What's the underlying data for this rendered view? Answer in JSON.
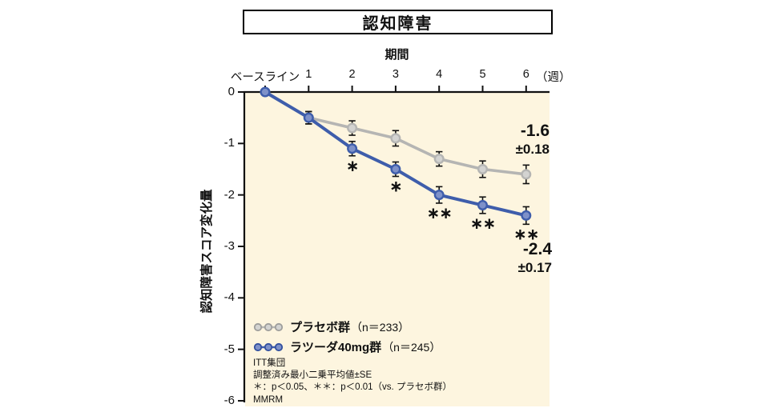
{
  "title": "認知障害",
  "axes": {
    "x_title": "期間",
    "x_tick_labels": [
      "ベースライン",
      "1",
      "2",
      "3",
      "4",
      "5",
      "6"
    ],
    "x_unit": "（週）",
    "y_label": "認知障害スコア変化量",
    "y_ticks": [
      "0",
      "-1",
      "-2",
      "-3",
      "-4",
      "-5",
      "-6"
    ]
  },
  "chart_data": {
    "type": "line",
    "title": "認知障害",
    "xlabel": "期間",
    "ylabel": "認知障害スコア変化量",
    "x_categories": [
      "ベースライン",
      "1",
      "2",
      "3",
      "4",
      "5",
      "6"
    ],
    "x_unit": "週",
    "ylim": [
      -6,
      0
    ],
    "grid": false,
    "legend_position": "inside-bottom-left",
    "series": [
      {
        "name": "プラセボ群",
        "n_label": "（n＝233）",
        "color": "#b5b5b3",
        "marker_fill": "#d3d3d1",
        "marker_edge": "#9e9e9c",
        "values": [
          0,
          -0.5,
          -0.7,
          -0.9,
          -1.3,
          -1.5,
          -1.6
        ],
        "se": [
          0,
          0.12,
          0.14,
          0.15,
          0.14,
          0.16,
          0.18
        ],
        "significance": [
          "",
          "",
          "",
          "",
          "",
          "",
          ""
        ],
        "final_value_label": "-1.6",
        "final_se_label": "±0.18"
      },
      {
        "name": "ラツーダ40mg群",
        "n_label": "（n＝245）",
        "color": "#3e5dab",
        "marker_fill": "#7e91c9",
        "marker_edge": "#32509f",
        "values": [
          0,
          -0.5,
          -1.1,
          -1.5,
          -2.0,
          -2.2,
          -2.4
        ],
        "se": [
          0,
          0.12,
          0.14,
          0.14,
          0.16,
          0.16,
          0.17
        ],
        "significance": [
          "",
          "",
          "∗",
          "∗",
          "∗∗",
          "∗∗",
          "∗∗"
        ],
        "final_value_label": "-2.4",
        "final_se_label": "±0.17"
      }
    ]
  },
  "footnotes": [
    "ITT集団",
    "調整済み最小二乗平均値±SE",
    "＊：p＜0.05、＊＊：p＜0.01（vs. プラセボ群）",
    "MMRM"
  ],
  "colors": {
    "plot_bg": "#fdf5df",
    "axis": "#111111",
    "error_bar": "#111111",
    "text": "#111111"
  }
}
